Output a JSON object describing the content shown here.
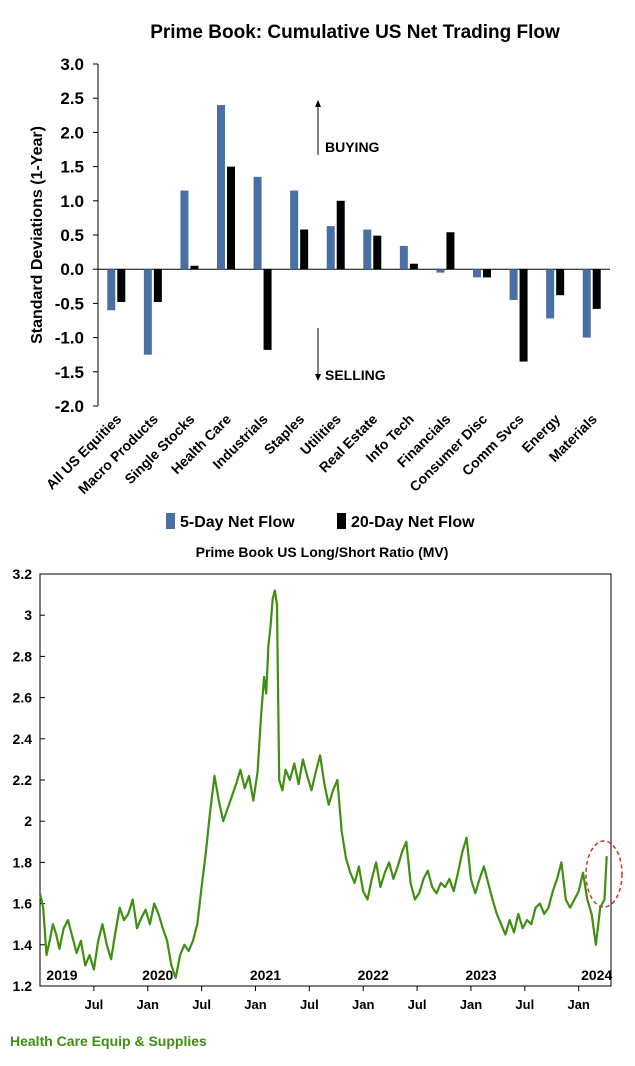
{
  "colors": {
    "blue": "#4a6fa5",
    "black": "#000000",
    "green": "#3f8f10",
    "highlight": "#c0392b"
  },
  "chart_data": [
    {
      "type": "bar",
      "title": "Prime Book: Cumulative US Net Trading Flow",
      "ylabel": "Standard Deviations (1-Year)",
      "xlabel": "",
      "ylim": [
        -2.0,
        3.0
      ],
      "yticks": [
        "3.0",
        "2.5",
        "2.0",
        "1.5",
        "1.0",
        "0.5",
        "0.0",
        "-0.5",
        "-1.0",
        "-1.5",
        "-2.0"
      ],
      "categories": [
        "All US Equities",
        "Macro Products",
        "Single Stocks",
        "Health Care",
        "Industrials",
        "Staples",
        "Utilities",
        "Real Estate",
        "Info Tech",
        "Financials",
        "Consumer Disc",
        "Comm Svcs",
        "Energy",
        "Materials"
      ],
      "series": [
        {
          "name": "5-Day Net Flow",
          "color": "#4a6fa5",
          "values": [
            -0.6,
            -1.25,
            1.15,
            2.4,
            1.35,
            1.15,
            0.63,
            0.58,
            0.34,
            -0.05,
            -0.12,
            -0.45,
            -0.72,
            -1.0
          ]
        },
        {
          "name": "20-Day Net Flow",
          "color": "#000000",
          "values": [
            -0.48,
            -0.48,
            0.05,
            1.5,
            -1.18,
            0.58,
            1.0,
            0.49,
            0.08,
            0.54,
            -0.12,
            -1.35,
            -0.38,
            -0.58
          ]
        }
      ],
      "annotations": {
        "buying": "BUYING",
        "selling": "SELLING"
      },
      "legend_position": "bottom-center"
    },
    {
      "type": "line",
      "title": "Prime Book US Long/Short Ratio (MV)",
      "ylim": [
        1.2,
        3.2
      ],
      "yticks": [
        "3.2",
        "3",
        "2.8",
        "2.6",
        "2.4",
        "2.2",
        "2",
        "1.8",
        "1.6",
        "1.4",
        "1.2"
      ],
      "xlim": [
        2019.0,
        2024.3
      ],
      "year_labels": [
        "2019",
        "2020",
        "2021",
        "2022",
        "2023",
        "2024"
      ],
      "month_labels": [
        "Jul",
        "Jan",
        "Jul",
        "Jan",
        "Jul",
        "Jan",
        "Jul",
        "Jan",
        "Jul",
        "Jan"
      ],
      "series": [
        {
          "name": "Health Care Equip & Supplies",
          "color": "#3f8f10",
          "x": [
            2019.0,
            2019.03,
            2019.06,
            2019.09,
            2019.12,
            2019.15,
            2019.18,
            2019.22,
            2019.26,
            2019.3,
            2019.34,
            2019.38,
            2019.42,
            2019.46,
            2019.5,
            2019.54,
            2019.58,
            2019.62,
            2019.66,
            2019.7,
            2019.74,
            2019.78,
            2019.82,
            2019.86,
            2019.9,
            2019.94,
            2019.98,
            2020.02,
            2020.06,
            2020.1,
            2020.14,
            2020.18,
            2020.22,
            2020.26,
            2020.3,
            2020.34,
            2020.38,
            2020.42,
            2020.46,
            2020.5,
            2020.54,
            2020.58,
            2020.62,
            2020.66,
            2020.7,
            2020.74,
            2020.78,
            2020.82,
            2020.86,
            2020.9,
            2020.94,
            2020.98,
            2021.02,
            2021.05,
            2021.08,
            2021.1,
            2021.12,
            2021.14,
            2021.16,
            2021.18,
            2021.2,
            2021.22,
            2021.25,
            2021.28,
            2021.32,
            2021.36,
            2021.4,
            2021.44,
            2021.48,
            2021.52,
            2021.56,
            2021.6,
            2021.64,
            2021.68,
            2021.72,
            2021.76,
            2021.8,
            2021.84,
            2021.88,
            2021.92,
            2021.96,
            2022.0,
            2022.04,
            2022.08,
            2022.12,
            2022.16,
            2022.2,
            2022.24,
            2022.28,
            2022.32,
            2022.36,
            2022.4,
            2022.44,
            2022.48,
            2022.52,
            2022.56,
            2022.6,
            2022.64,
            2022.68,
            2022.72,
            2022.76,
            2022.8,
            2022.84,
            2022.88,
            2022.92,
            2022.96,
            2023.0,
            2023.04,
            2023.08,
            2023.12,
            2023.16,
            2023.2,
            2023.24,
            2023.28,
            2023.32,
            2023.36,
            2023.4,
            2023.44,
            2023.48,
            2023.52,
            2023.56,
            2023.6,
            2023.64,
            2023.68,
            2023.72,
            2023.76,
            2023.8,
            2023.84,
            2023.88,
            2023.92,
            2023.96,
            2024.0,
            2024.04,
            2024.08,
            2024.12,
            2024.16,
            2024.2,
            2024.24,
            2024.26
          ],
          "y": [
            1.65,
            1.58,
            1.35,
            1.42,
            1.5,
            1.45,
            1.38,
            1.48,
            1.52,
            1.44,
            1.36,
            1.42,
            1.3,
            1.35,
            1.28,
            1.42,
            1.5,
            1.4,
            1.33,
            1.46,
            1.58,
            1.52,
            1.55,
            1.62,
            1.48,
            1.53,
            1.57,
            1.5,
            1.6,
            1.55,
            1.48,
            1.42,
            1.3,
            1.24,
            1.35,
            1.4,
            1.37,
            1.42,
            1.5,
            1.68,
            1.85,
            2.05,
            2.22,
            2.1,
            2.0,
            2.06,
            2.12,
            2.18,
            2.25,
            2.16,
            2.22,
            2.1,
            2.24,
            2.5,
            2.7,
            2.62,
            2.85,
            2.95,
            3.08,
            3.12,
            3.05,
            2.2,
            2.15,
            2.25,
            2.2,
            2.28,
            2.18,
            2.3,
            2.22,
            2.15,
            2.24,
            2.32,
            2.18,
            2.08,
            2.15,
            2.2,
            1.95,
            1.82,
            1.75,
            1.7,
            1.78,
            1.66,
            1.62,
            1.72,
            1.8,
            1.68,
            1.75,
            1.8,
            1.72,
            1.78,
            1.85,
            1.9,
            1.7,
            1.62,
            1.65,
            1.72,
            1.76,
            1.68,
            1.65,
            1.7,
            1.68,
            1.72,
            1.66,
            1.75,
            1.85,
            1.92,
            1.72,
            1.65,
            1.72,
            1.78,
            1.7,
            1.62,
            1.55,
            1.5,
            1.45,
            1.52,
            1.46,
            1.55,
            1.48,
            1.52,
            1.5,
            1.58,
            1.6,
            1.55,
            1.58,
            1.66,
            1.72,
            1.8,
            1.62,
            1.58,
            1.62,
            1.66,
            1.75,
            1.62,
            1.55,
            1.4,
            1.58,
            1.62,
            1.83
          ]
        }
      ],
      "highlight": "recent 2024 spike"
    }
  ],
  "footnote": "Health Care Equip & Supplies"
}
